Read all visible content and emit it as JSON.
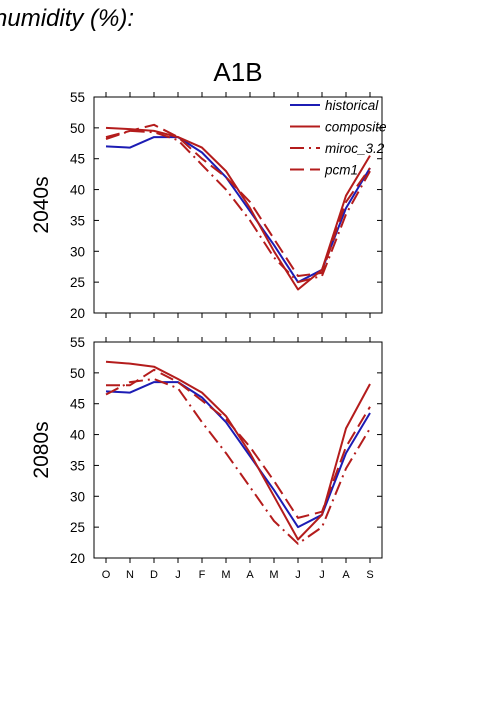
{
  "figure": {
    "supertitle": "humidity (%):",
    "title": "A1B"
  },
  "colors": {
    "historical": "#1c1cb4",
    "model": "#b41c1c"
  },
  "chart_data": [
    {
      "type": "line",
      "row_label": "2040s",
      "categories": [
        "O",
        "N",
        "D",
        "J",
        "F",
        "M",
        "A",
        "M",
        "J",
        "J",
        "A",
        "S"
      ],
      "ylim": [
        20,
        55
      ],
      "yticks": [
        "20",
        "25",
        "30",
        "35",
        "40",
        "45",
        "50",
        "55"
      ],
      "grid": false,
      "legend": "top-right",
      "series": [
        {
          "name": "historical",
          "dash": "solid",
          "values": [
            47.0,
            46.8,
            48.5,
            48.5,
            46.0,
            42.0,
            36.5,
            31.0,
            25.0,
            27.0,
            37.0,
            43.5
          ]
        },
        {
          "name": "composite",
          "dash": "solid",
          "values": [
            50.0,
            49.8,
            49.5,
            48.5,
            46.8,
            43.0,
            37.0,
            30.0,
            23.8,
            27.0,
            39.0,
            45.5
          ]
        },
        {
          "name": "miroc_3.2",
          "dash": "dashdot",
          "values": [
            48.2,
            49.5,
            49.3,
            48.0,
            44.0,
            40.0,
            35.0,
            29.0,
            25.0,
            26.0,
            36.0,
            43.0
          ]
        },
        {
          "name": "pcm1",
          "dash": "dashed",
          "values": [
            48.5,
            49.5,
            50.5,
            48.5,
            45.0,
            42.0,
            38.0,
            32.0,
            26.0,
            26.5,
            38.0,
            43.5
          ]
        }
      ]
    },
    {
      "type": "line",
      "row_label": "2080s",
      "categories": [
        "O",
        "N",
        "D",
        "J",
        "F",
        "M",
        "A",
        "M",
        "J",
        "J",
        "A",
        "S"
      ],
      "ylim": [
        20,
        55
      ],
      "yticks": [
        "20",
        "25",
        "30",
        "35",
        "40",
        "45",
        "50",
        "55"
      ],
      "grid": false,
      "series": [
        {
          "name": "historical",
          "dash": "solid",
          "values": [
            47.0,
            46.8,
            48.5,
            48.5,
            46.0,
            42.0,
            36.5,
            31.0,
            25.0,
            27.0,
            37.0,
            43.5
          ]
        },
        {
          "name": "composite",
          "dash": "solid",
          "values": [
            51.8,
            51.5,
            51.0,
            49.0,
            46.8,
            43.0,
            37.0,
            30.0,
            23.0,
            27.0,
            41.0,
            48.2
          ]
        },
        {
          "name": "miroc_3.2",
          "dash": "dashdot",
          "values": [
            46.5,
            48.5,
            49.0,
            47.5,
            42.0,
            37.0,
            31.5,
            26.0,
            22.3,
            25.0,
            34.5,
            41.0
          ]
        },
        {
          "name": "pcm1",
          "dash": "dashed",
          "values": [
            48.0,
            48.0,
            50.5,
            48.5,
            45.5,
            42.5,
            38.0,
            32.5,
            26.5,
            27.5,
            38.0,
            44.5
          ]
        }
      ]
    }
  ]
}
